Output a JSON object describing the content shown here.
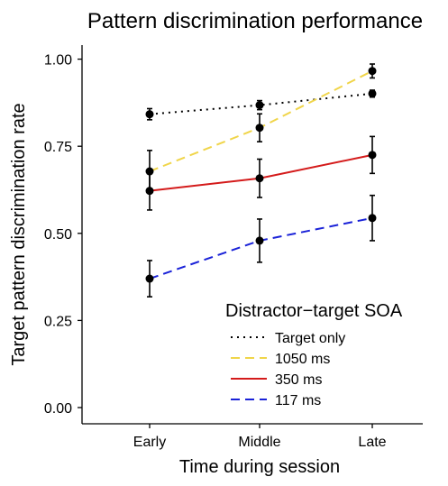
{
  "chart_data": {
    "type": "line",
    "title": "Pattern discrimination performance",
    "xlabel": "Time during session",
    "ylabel": "Target pattern discrimination rate",
    "categories": [
      "Early",
      "Middle",
      "Late"
    ],
    "ylim": [
      0,
      1.05
    ],
    "yticks": [
      0.0,
      0.25,
      0.5,
      0.75,
      1.0
    ],
    "ytick_labels": [
      "0.00",
      "0.25",
      "0.50",
      "0.75",
      "1.00"
    ],
    "grid": false,
    "legend": {
      "title": "Distractor−target SOA",
      "position": "bottom-right"
    },
    "series": [
      {
        "name": "Target only",
        "color": "#000000",
        "line_style": "dotted",
        "values": [
          0.842,
          0.868,
          0.901
        ],
        "error": [
          0.016,
          0.013,
          0.01
        ]
      },
      {
        "name": "1050 ms",
        "color": "#f0d54a",
        "line_style": "dashed",
        "values": [
          0.678,
          0.803,
          0.966
        ],
        "error": [
          0.06,
          0.04,
          0.02
        ]
      },
      {
        "name": "350 ms",
        "color": "#d41b1b",
        "line_style": "solid",
        "values": [
          0.622,
          0.658,
          0.725
        ],
        "error": [
          0.055,
          0.055,
          0.053
        ]
      },
      {
        "name": "117 ms",
        "color": "#1a22d8",
        "line_style": "dashed",
        "values": [
          0.37,
          0.479,
          0.544
        ],
        "error": [
          0.052,
          0.062,
          0.065
        ]
      }
    ]
  }
}
